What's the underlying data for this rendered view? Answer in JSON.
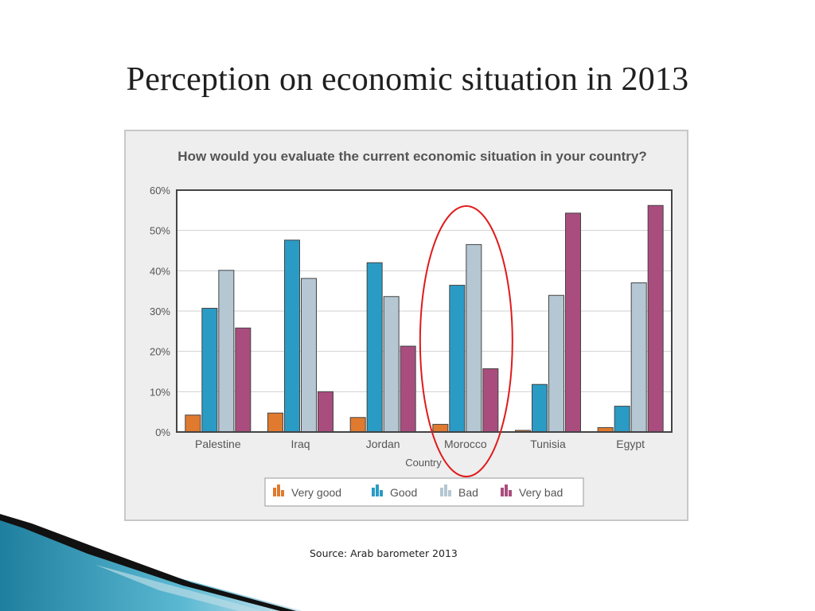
{
  "slide": {
    "title": "Perception on economic situation in 2013",
    "source": "Source: Arab barometer 2013"
  },
  "colors": {
    "very_good": "#e07a2e",
    "good": "#2a9bc4",
    "bad": "#b6c7d4",
    "very_bad": "#a84d7e",
    "highlight": "#e01b1b"
  },
  "chart_data": {
    "type": "bar",
    "title": "How would you evaluate the current economic situation in your country?",
    "xlabel": "Country",
    "ylabel": "",
    "ylim": [
      0,
      60
    ],
    "yticks": [
      "0%",
      "10%",
      "20%",
      "30%",
      "40%",
      "50%",
      "60%"
    ],
    "categories": [
      "Palestine",
      "Iraq",
      "Jordan",
      "Morocco",
      "Tunisia",
      "Egypt"
    ],
    "series": [
      {
        "name": "Very good",
        "key": "very_good",
        "values": [
          4.2,
          4.7,
          3.6,
          1.9,
          0.4,
          1.1
        ]
      },
      {
        "name": "Good",
        "key": "good",
        "values": [
          30.7,
          47.6,
          42.0,
          36.4,
          11.8,
          6.4
        ]
      },
      {
        "name": "Bad",
        "key": "bad",
        "values": [
          40.1,
          38.1,
          33.6,
          46.5,
          33.9,
          37.0
        ]
      },
      {
        "name": "Very bad",
        "key": "very_bad",
        "values": [
          25.8,
          10.0,
          21.3,
          15.7,
          54.3,
          56.2
        ]
      }
    ],
    "grid": true,
    "legend": "bottom",
    "highlighted_category": "Morocco"
  }
}
